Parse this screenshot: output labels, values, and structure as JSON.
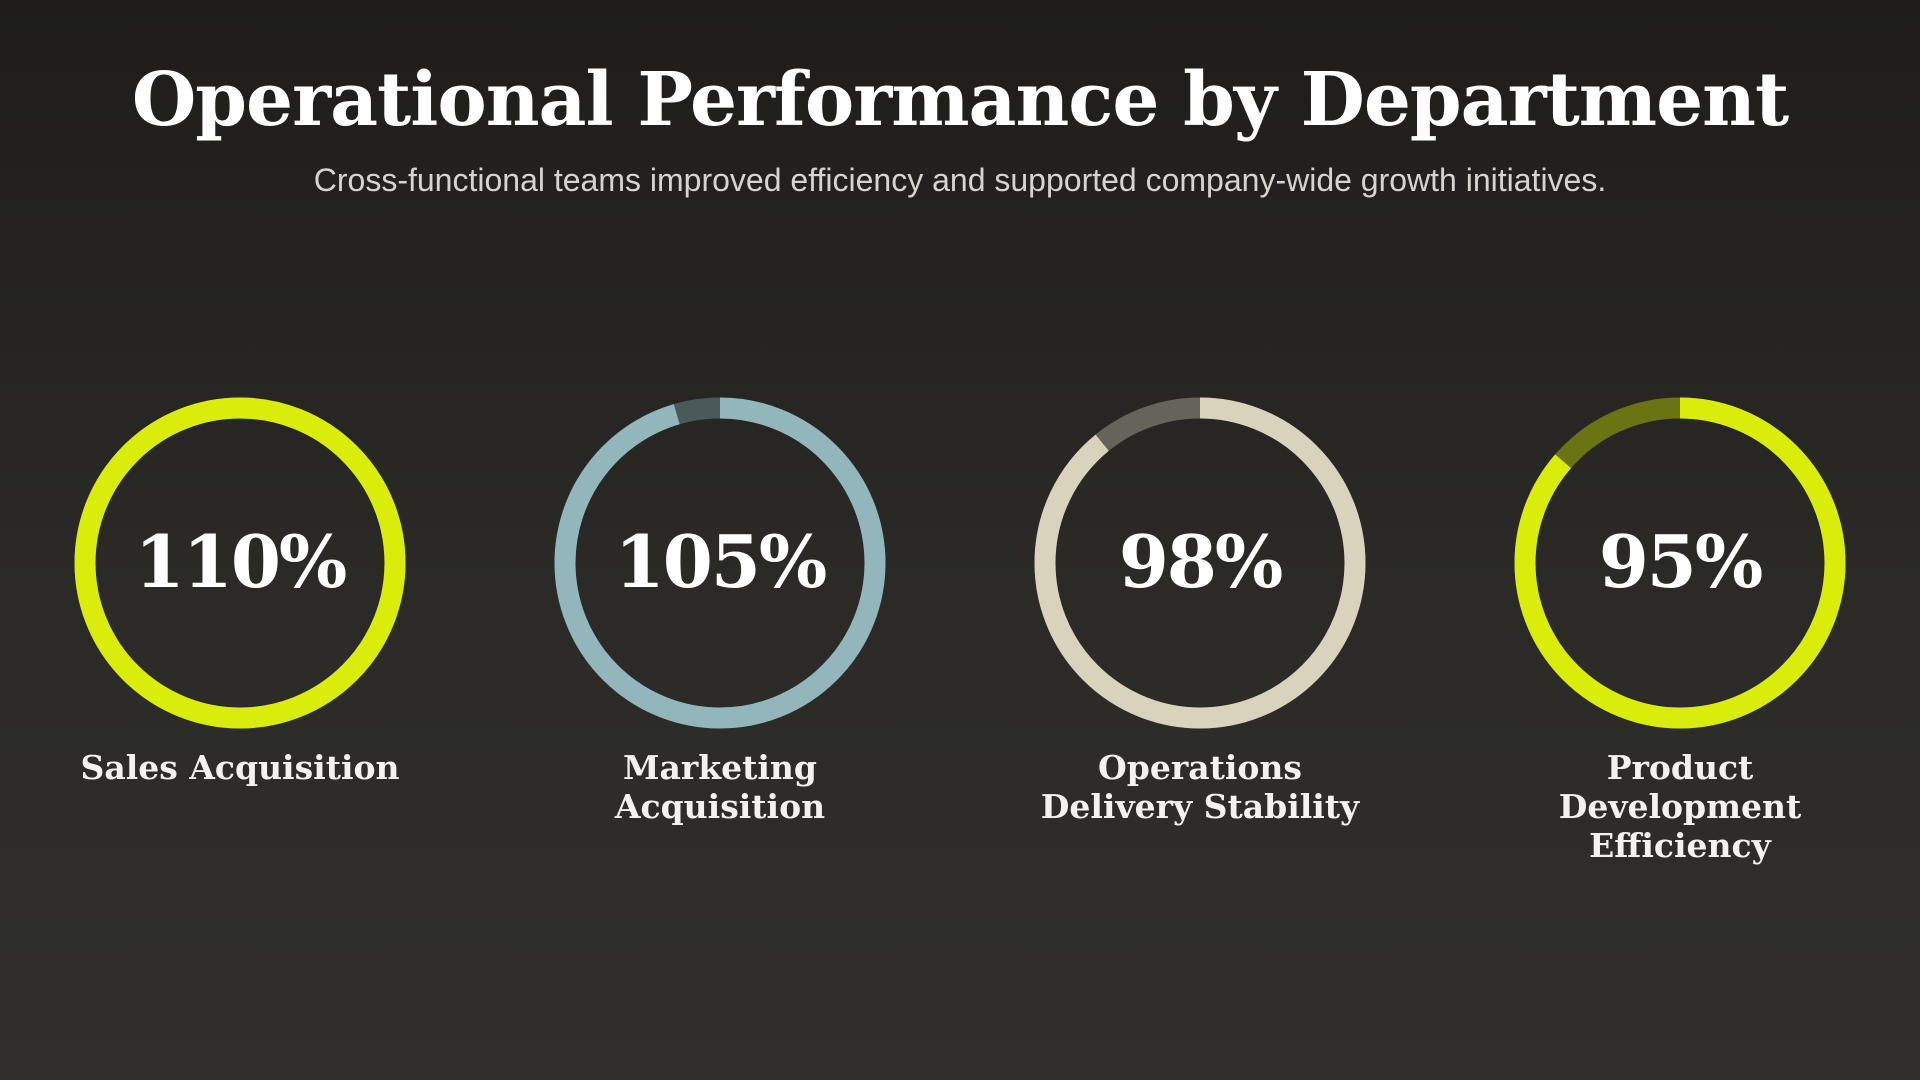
{
  "header": {
    "title": "Operational Performance by Department",
    "subtitle": "Cross-functional teams improved efficiency and supported company-wide growth initiatives."
  },
  "chart_data": {
    "type": "donut",
    "title": "Operational Performance by Department",
    "subtitle": "Cross-functional teams improved efficiency and supported company-wide growth initiatives.",
    "unit": "%",
    "series": [
      {
        "name": "Sales Acquisition",
        "label": "Sales Acquisition",
        "value": 110,
        "display": "110%",
        "color": "#d9ec0a",
        "track_color": "#6b7413"
      },
      {
        "name": "Marketing Acquisition",
        "label": "Marketing\nAcquisition",
        "value": 105,
        "display": "105%",
        "color": "#93b6bc",
        "track_color": "#4a5a5b"
      },
      {
        "name": "Operations Delivery Stability",
        "label": "Operations\nDelivery Stability",
        "value": 98,
        "display": "98%",
        "color": "#d9d2bd",
        "track_color": "#65635a"
      },
      {
        "name": "Product Development Efficiency",
        "label": "Product\nDevelopment\nEfficiency",
        "value": 95,
        "display": "95%",
        "color": "#d9ec0a",
        "track_color": "#6b7413"
      }
    ],
    "scale_max": 110
  }
}
